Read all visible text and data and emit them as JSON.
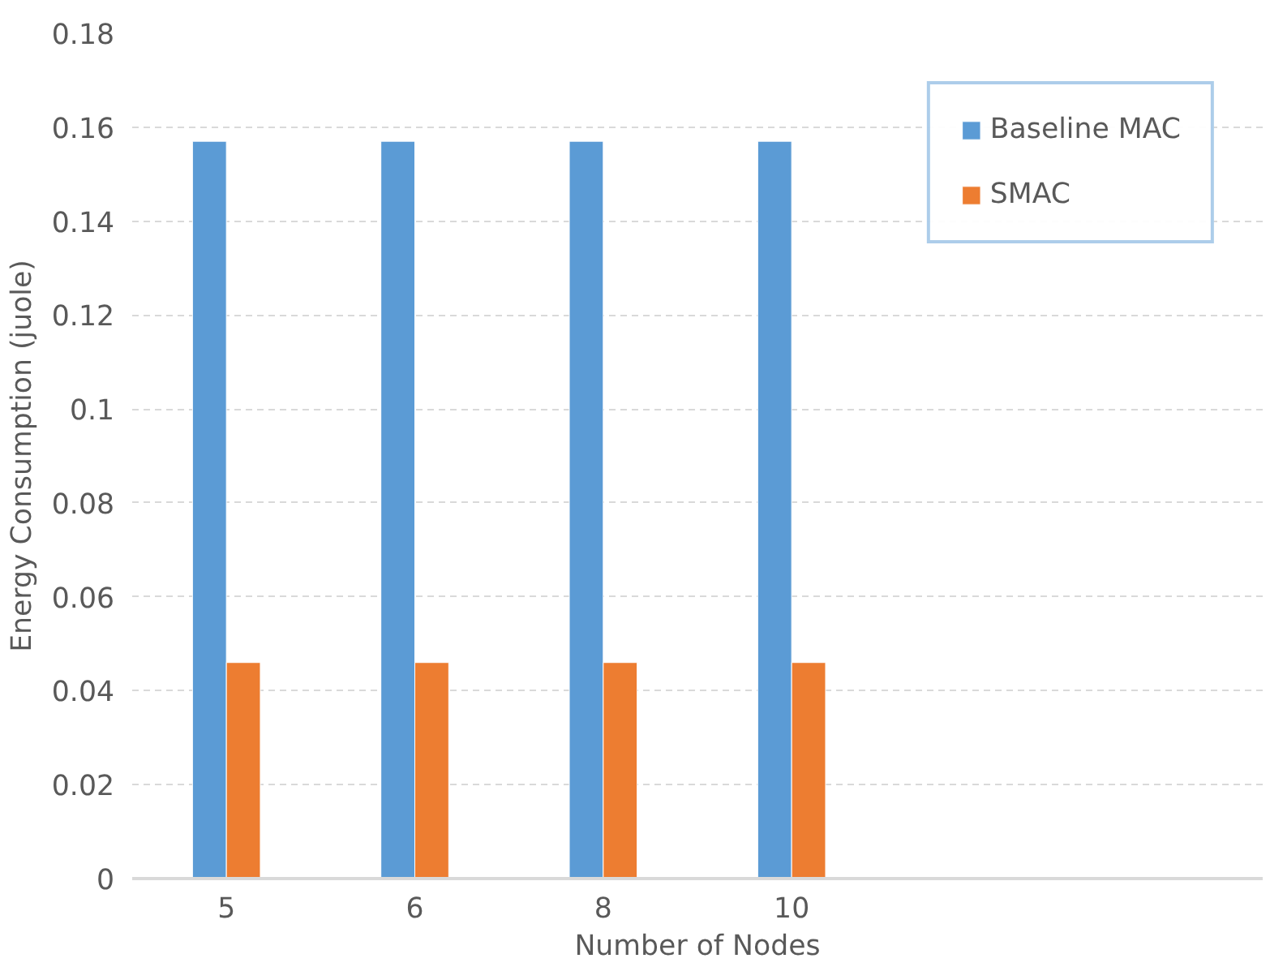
{
  "chart_data": {
    "type": "bar",
    "xlabel": "Number of Nodes",
    "ylabel": "Energy Consumption (juole)",
    "categories": [
      "5",
      "6",
      "8",
      "10",
      null,
      null
    ],
    "series": [
      {
        "name": "Baseline MAC",
        "color": "#5b9bd5",
        "values": [
          0.157,
          0.157,
          0.157,
          0.157,
          null,
          null
        ]
      },
      {
        "name": "SMAC",
        "color": "#ed7d31",
        "values": [
          0.046,
          0.046,
          0.046,
          0.046,
          null,
          null
        ]
      }
    ],
    "ylim": [
      0,
      0.18
    ],
    "yticks": [
      0,
      0.02,
      0.04,
      0.06,
      0.08,
      {
        "value": 0.1,
        "label": "0.1"
      },
      0.12,
      0.14,
      0.16,
      0.18
    ],
    "grid": "y",
    "legend": "top right"
  }
}
